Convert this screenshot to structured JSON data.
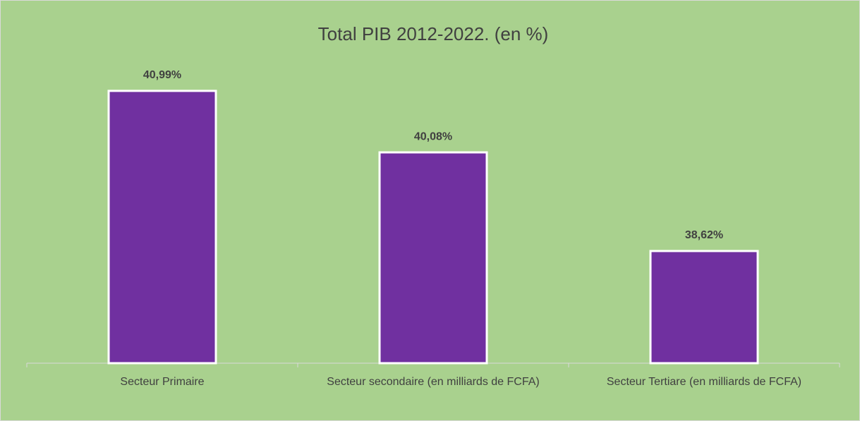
{
  "chart_data": {
    "type": "bar",
    "title": "Total PIB 2012-2022. (en %)",
    "categories": [
      "Secteur Primaire",
      "Secteur secondaire (en milliards de FCFA)",
      "Secteur Tertiare (en milliards de FCFA)"
    ],
    "values": [
      40.99,
      40.08,
      38.62
    ],
    "value_labels": [
      "40,99%",
      "40,08%",
      "38,62%"
    ],
    "color": "#7030a0",
    "ylim": [
      36.96,
      41.5
    ]
  }
}
